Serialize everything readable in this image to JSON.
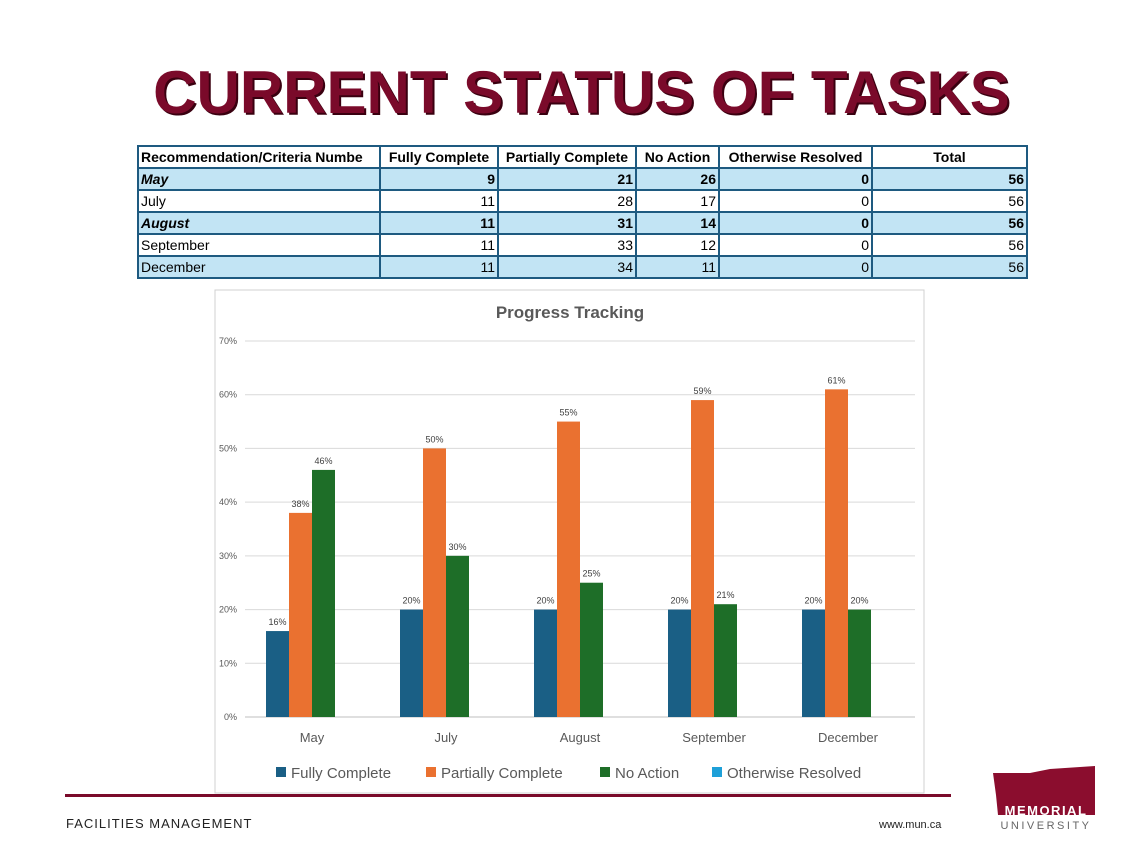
{
  "title": "CURRENT STATUS OF TASKS",
  "table": {
    "headers": [
      "Recommendation/Criteria Numbe",
      "Fully Complete",
      "Partially Complete",
      "No Action",
      "Otherwise Resolved",
      "Total"
    ],
    "rows": [
      [
        "May",
        "9",
        "21",
        "26",
        "0",
        "56"
      ],
      [
        "July",
        "11",
        "28",
        "17",
        "0",
        "56"
      ],
      [
        "August",
        "11",
        "31",
        "14",
        "0",
        "56"
      ],
      [
        "September",
        "11",
        "33",
        "12",
        "0",
        "56"
      ],
      [
        "December",
        "11",
        "34",
        "11",
        "0",
        "56"
      ]
    ]
  },
  "chart_data": {
    "type": "bar",
    "title": "Progress Tracking",
    "categories": [
      "May",
      "July",
      "August",
      "September",
      "December"
    ],
    "series": [
      {
        "name": "Fully Complete",
        "color": "#1a5f85",
        "values": [
          16,
          20,
          20,
          20,
          20
        ]
      },
      {
        "name": "Partially Complete",
        "color": "#ea7130",
        "values": [
          38,
          50,
          55,
          59,
          61
        ]
      },
      {
        "name": "No Action",
        "color": "#1e6e28",
        "values": [
          46,
          30,
          25,
          21,
          20
        ]
      },
      {
        "name": "Otherwise Resolved",
        "color": "#1ea0d8",
        "values": [
          0,
          0,
          0,
          0,
          0
        ]
      }
    ],
    "data_labels": [
      [
        "16%",
        "20%",
        "20%",
        "20%",
        "20%"
      ],
      [
        "38%",
        "50%",
        "55%",
        "59%",
        "61%"
      ],
      [
        "46%",
        "30%",
        "25%",
        "21%",
        "20%"
      ]
    ],
    "yticks": [
      "0%",
      "10%",
      "20%",
      "30%",
      "40%",
      "50%",
      "60%",
      "70%"
    ],
    "ylim": [
      0,
      70
    ],
    "grid": true,
    "legend": "bottom"
  },
  "footer": {
    "left": "FACILITIES MANAGEMENT",
    "right": "www.mun.ca"
  },
  "logo": {
    "line1": "MEMORIAL",
    "line2": "UNIVERSITY"
  }
}
